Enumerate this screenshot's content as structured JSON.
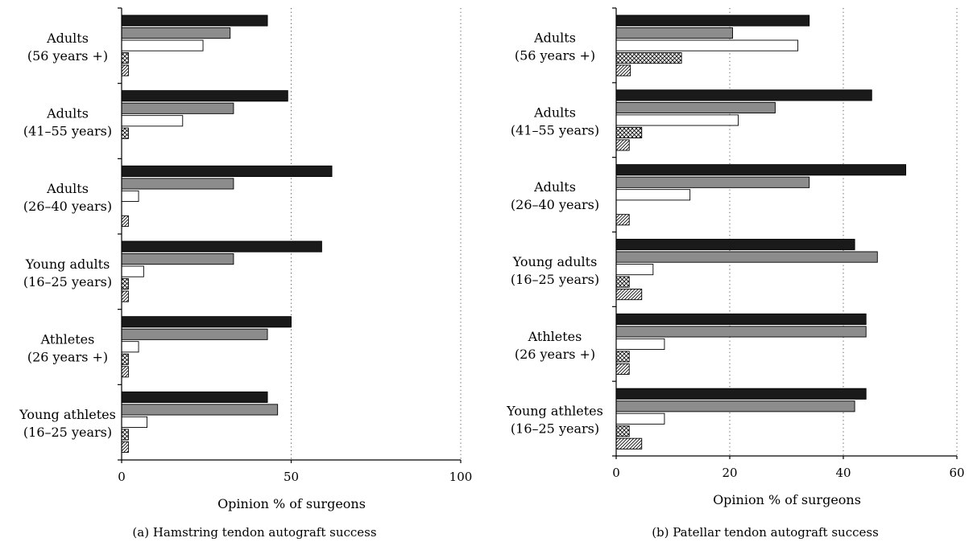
{
  "chart_data": [
    {
      "type": "bar",
      "orientation": "horizontal",
      "title": "",
      "caption": "(a)  Hamstring tendon autograft success",
      "xlabel": "Opinion % of surgeons",
      "ylabel": "",
      "xlim": [
        0,
        100
      ],
      "xticks": [
        0,
        50,
        100
      ],
      "grid": "vertical dotted",
      "legend": "none",
      "categories": [
        [
          "Adults",
          "(56 years +)"
        ],
        [
          "Adults",
          "(41–55 years)"
        ],
        [
          "Adults",
          "(26–40 years)"
        ],
        [
          "Young adults",
          "(16–25 years)"
        ],
        [
          "Athletes",
          "(26 years +)"
        ],
        [
          "Young athletes",
          "(16–25 years)"
        ]
      ],
      "series": [
        {
          "fill": "black",
          "values": [
            43,
            49,
            62,
            59,
            50,
            43
          ]
        },
        {
          "fill": "gray",
          "values": [
            32,
            33,
            33,
            33,
            43,
            46
          ]
        },
        {
          "fill": "white",
          "values": [
            24,
            18,
            5,
            6.5,
            5,
            7.5
          ]
        },
        {
          "fill": "crosshatch",
          "values": [
            2,
            2,
            0,
            2,
            2,
            2
          ]
        },
        {
          "fill": "diagonal",
          "values": [
            2,
            0,
            2,
            2,
            2,
            2
          ]
        }
      ]
    },
    {
      "type": "bar",
      "orientation": "horizontal",
      "title": "",
      "caption": "(b)  Patellar tendon autograft success",
      "xlabel": "Opinion % of surgeons",
      "ylabel": "",
      "xlim": [
        0,
        60
      ],
      "xticks": [
        0,
        20,
        40,
        60
      ],
      "grid": "vertical dotted",
      "legend": "none",
      "categories": [
        [
          "Adults",
          "(56 years +)"
        ],
        [
          "Adults",
          "(41–55 years)"
        ],
        [
          "Adults",
          "(26–40 years)"
        ],
        [
          "Young adults",
          "(16–25 years)"
        ],
        [
          "Athletes",
          "(26 years +)"
        ],
        [
          "Young athletes",
          "(16–25 years)"
        ]
      ],
      "series": [
        {
          "fill": "black",
          "values": [
            34,
            45,
            51,
            42,
            44,
            44
          ]
        },
        {
          "fill": "gray",
          "values": [
            20.5,
            28,
            34,
            46,
            44,
            42
          ]
        },
        {
          "fill": "white",
          "values": [
            32,
            21.5,
            13,
            6.5,
            8.5,
            8.5
          ]
        },
        {
          "fill": "crosshatch",
          "values": [
            11.5,
            4.5,
            0,
            2.3,
            2.3,
            2.3
          ]
        },
        {
          "fill": "diagonal",
          "values": [
            2.5,
            2.3,
            2.3,
            4.5,
            2.3,
            4.5
          ]
        }
      ]
    }
  ]
}
